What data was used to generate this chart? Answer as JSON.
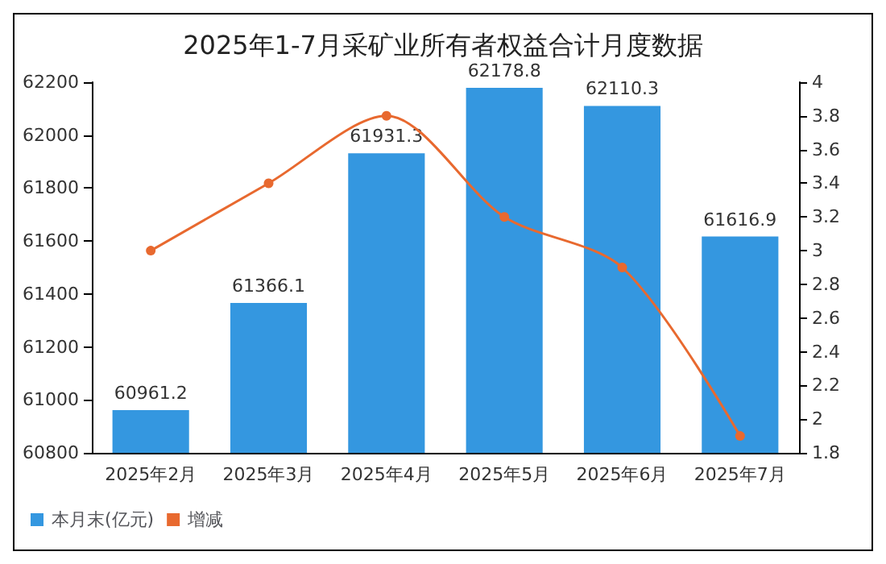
{
  "chart_data": {
    "type": "bar",
    "title": "2025年1-7月采矿业所有者权益合计月度数据",
    "categories": [
      "2025年2月",
      "2025年3月",
      "2025年4月",
      "2025年5月",
      "2025年6月",
      "2025年7月"
    ],
    "series": [
      {
        "name": "本月末(亿元)",
        "color": "#3497e0",
        "values": [
          60961.2,
          61366.1,
          61931.3,
          62178.8,
          62110.3,
          61616.9
        ],
        "value_labels": [
          "60961.2",
          "61366.1",
          "61931.3",
          "62178.8",
          "62110.3",
          "61616.9"
        ]
      },
      {
        "name": "增减",
        "type": "line",
        "axis": "y2",
        "color": "#e8692f",
        "values": [
          3.0,
          3.4,
          3.8,
          3.2,
          2.9,
          1.9
        ]
      }
    ],
    "ylim": [
      60800,
      62200
    ],
    "yticks": [
      60800,
      61000,
      61200,
      61400,
      61600,
      61800,
      62000,
      62200
    ],
    "y2lim": [
      1.8,
      4
    ],
    "y2ticks": [
      1.8,
      2,
      2.2,
      2.4,
      2.6,
      2.8,
      3,
      3.2,
      3.4,
      3.6,
      3.8,
      4
    ],
    "marker": "circle",
    "grid": false,
    "legend": "bottom left"
  }
}
